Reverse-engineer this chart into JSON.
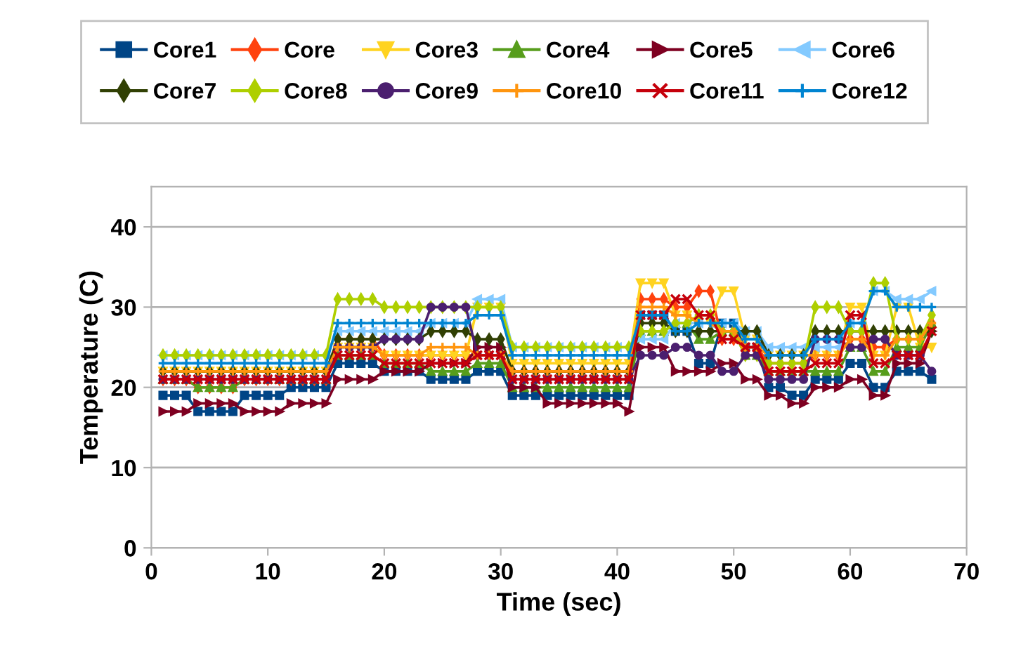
{
  "chart_data": {
    "type": "line",
    "xlabel": "Time (sec)",
    "ylabel": "Temperature (C)",
    "x": [
      1,
      2,
      3,
      4,
      5,
      6,
      7,
      8,
      9,
      10,
      11,
      12,
      13,
      14,
      15,
      16,
      17,
      18,
      19,
      20,
      21,
      22,
      23,
      24,
      25,
      26,
      27,
      28,
      29,
      30,
      31,
      32,
      33,
      34,
      35,
      36,
      37,
      38,
      39,
      40,
      41,
      42,
      43,
      44,
      45,
      46,
      47,
      48,
      49,
      50,
      51,
      52,
      53,
      54,
      55,
      56,
      57,
      58,
      59,
      60,
      61,
      62,
      63,
      64,
      65,
      66,
      67
    ],
    "xlim": [
      0,
      70
    ],
    "xticks": [
      0,
      10,
      20,
      30,
      40,
      50,
      60,
      70
    ],
    "ylim": [
      0,
      45
    ],
    "yticks": [
      0,
      10,
      20,
      30,
      40
    ],
    "grid": "y",
    "legend": "top",
    "line_style": "solid",
    "series": [
      {
        "name": "Core1",
        "color": "#004586",
        "marker": "square",
        "values": [
          19,
          19,
          19,
          17,
          17,
          17,
          17,
          19,
          19,
          19,
          19,
          20,
          20,
          20,
          20,
          23,
          23,
          23,
          23,
          22,
          22,
          22,
          22,
          21,
          21,
          21,
          21,
          22,
          22,
          22,
          19,
          19,
          19,
          19,
          19,
          19,
          19,
          19,
          19,
          19,
          19,
          29,
          29,
          29,
          27,
          27,
          23,
          23,
          28,
          28,
          25,
          25,
          20,
          20,
          19,
          19,
          21,
          21,
          21,
          23,
          23,
          20,
          20,
          22,
          22,
          22,
          21
        ]
      },
      {
        "name": "Core",
        "color": "#ff420e",
        "marker": "diamond",
        "values": [
          21,
          21,
          21,
          20,
          20,
          20,
          20,
          21,
          21,
          21,
          21,
          21,
          21,
          21,
          21,
          26,
          26,
          26,
          26,
          24,
          24,
          24,
          24,
          24,
          24,
          24,
          24,
          24,
          24,
          24,
          22,
          22,
          22,
          22,
          22,
          22,
          22,
          22,
          22,
          22,
          22,
          31,
          31,
          31,
          30,
          30,
          32,
          32,
          26,
          26,
          25,
          25,
          23,
          23,
          23,
          23,
          24,
          24,
          24,
          26,
          26,
          25,
          25,
          26,
          26,
          26,
          28
        ]
      },
      {
        "name": "Core3",
        "color": "#ffd320",
        "marker": "triangle-down",
        "values": [
          22,
          22,
          22,
          22,
          22,
          22,
          22,
          22,
          22,
          22,
          22,
          22,
          22,
          22,
          22,
          25,
          25,
          25,
          25,
          24,
          24,
          24,
          24,
          24,
          24,
          24,
          24,
          30,
          30,
          30,
          23,
          23,
          23,
          23,
          23,
          23,
          23,
          23,
          23,
          23,
          23,
          33,
          33,
          33,
          29,
          29,
          28,
          28,
          32,
          32,
          26,
          26,
          24,
          24,
          24,
          24,
          24,
          24,
          24,
          30,
          30,
          24,
          24,
          30,
          30,
          25,
          25
        ]
      },
      {
        "name": "Core4",
        "color": "#579d1c",
        "marker": "triangle",
        "values": [
          21,
          21,
          21,
          20,
          20,
          20,
          20,
          21,
          21,
          21,
          21,
          21,
          21,
          21,
          21,
          24,
          24,
          24,
          24,
          23,
          23,
          23,
          23,
          22,
          22,
          22,
          22,
          23,
          23,
          23,
          20,
          20,
          20,
          20,
          20,
          20,
          20,
          20,
          20,
          20,
          20,
          27,
          27,
          27,
          28,
          28,
          26,
          26,
          27,
          27,
          24,
          24,
          22,
          22,
          22,
          22,
          22,
          22,
          22,
          25,
          25,
          22,
          22,
          25,
          25,
          25,
          28
        ]
      },
      {
        "name": "Core5",
        "color": "#7e0021",
        "marker": "triangle-right",
        "values": [
          17,
          17,
          17,
          18,
          18,
          18,
          18,
          17,
          17,
          17,
          17,
          18,
          18,
          18,
          18,
          21,
          21,
          21,
          21,
          22,
          22,
          22,
          22,
          23,
          23,
          23,
          23,
          25,
          25,
          25,
          20,
          20,
          20,
          18,
          18,
          18,
          18,
          18,
          18,
          18,
          17,
          25,
          25,
          25,
          22,
          22,
          22,
          22,
          23,
          23,
          21,
          21,
          19,
          19,
          18,
          18,
          20,
          20,
          20,
          21,
          21,
          19,
          19,
          23,
          23,
          23,
          27
        ]
      },
      {
        "name": "Core6",
        "color": "#83caff",
        "marker": "triangle-left",
        "values": [
          24,
          24,
          24,
          24,
          24,
          24,
          24,
          24,
          24,
          24,
          24,
          24,
          24,
          24,
          24,
          27,
          27,
          27,
          27,
          27,
          27,
          27,
          27,
          28,
          28,
          28,
          28,
          31,
          31,
          31,
          25,
          25,
          25,
          25,
          25,
          25,
          25,
          25,
          25,
          25,
          25,
          26,
          26,
          26,
          28,
          28,
          28,
          28,
          28,
          28,
          27,
          27,
          25,
          25,
          25,
          25,
          25,
          25,
          25,
          28,
          28,
          32,
          32,
          31,
          31,
          31,
          32
        ]
      },
      {
        "name": "Core7",
        "color": "#314004",
        "marker": "diamond",
        "values": [
          22,
          22,
          22,
          22,
          22,
          22,
          22,
          22,
          22,
          22,
          22,
          22,
          22,
          22,
          22,
          26,
          26,
          26,
          26,
          26,
          26,
          26,
          26,
          27,
          27,
          27,
          27,
          26,
          26,
          26,
          22,
          22,
          22,
          22,
          22,
          22,
          22,
          22,
          22,
          22,
          22,
          28,
          28,
          28,
          27,
          27,
          27,
          27,
          27,
          27,
          27,
          27,
          24,
          24,
          24,
          24,
          27,
          27,
          27,
          27,
          27,
          27,
          27,
          27,
          27,
          27,
          27
        ]
      },
      {
        "name": "Core8",
        "color": "#aecf00",
        "marker": "diamond",
        "values": [
          24,
          24,
          24,
          24,
          24,
          24,
          24,
          24,
          24,
          24,
          24,
          24,
          24,
          24,
          24,
          31,
          31,
          31,
          31,
          30,
          30,
          30,
          30,
          30,
          30,
          30,
          30,
          30,
          30,
          30,
          25,
          25,
          25,
          25,
          25,
          25,
          25,
          25,
          25,
          25,
          25,
          27,
          27,
          27,
          28,
          28,
          29,
          29,
          27,
          27,
          24,
          24,
          23,
          23,
          23,
          23,
          30,
          30,
          30,
          27,
          27,
          33,
          33,
          26,
          26,
          26,
          29
        ]
      },
      {
        "name": "Core9",
        "color": "#4b1f6f",
        "marker": "circle",
        "values": [
          21,
          21,
          21,
          21,
          21,
          21,
          21,
          21,
          21,
          21,
          21,
          21,
          21,
          21,
          21,
          25,
          25,
          25,
          25,
          26,
          26,
          26,
          26,
          30,
          30,
          30,
          30,
          24,
          24,
          24,
          21,
          21,
          21,
          21,
          21,
          21,
          21,
          21,
          21,
          21,
          21,
          24,
          24,
          24,
          25,
          25,
          24,
          24,
          22,
          22,
          24,
          24,
          21,
          21,
          21,
          21,
          26,
          26,
          26,
          25,
          25,
          26,
          26,
          24,
          24,
          24,
          22
        ]
      },
      {
        "name": "Core10",
        "color": "#ff950e",
        "marker": "plus",
        "values": [
          22,
          22,
          22,
          22,
          22,
          22,
          22,
          22,
          22,
          22,
          22,
          22,
          22,
          22,
          22,
          25,
          25,
          25,
          25,
          24,
          24,
          24,
          24,
          25,
          25,
          25,
          25,
          24,
          24,
          24,
          22,
          22,
          22,
          22,
          22,
          22,
          22,
          22,
          22,
          22,
          22,
          30,
          30,
          30,
          29,
          29,
          28,
          28,
          27,
          27,
          25,
          25,
          24,
          24,
          24,
          24,
          24,
          24,
          24,
          26,
          26,
          24,
          24,
          26,
          26,
          26,
          28
        ]
      },
      {
        "name": "Core11",
        "color": "#c5000b",
        "marker": "cross",
        "values": [
          21,
          21,
          21,
          21,
          21,
          21,
          21,
          21,
          21,
          21,
          21,
          21,
          21,
          21,
          21,
          24,
          24,
          24,
          24,
          23,
          23,
          23,
          23,
          23,
          23,
          23,
          23,
          24,
          24,
          24,
          21,
          21,
          21,
          21,
          21,
          21,
          21,
          21,
          21,
          21,
          21,
          29,
          29,
          29,
          31,
          31,
          29,
          29,
          26,
          26,
          25,
          25,
          22,
          22,
          22,
          22,
          23,
          23,
          23,
          29,
          29,
          23,
          23,
          24,
          24,
          24,
          27
        ]
      },
      {
        "name": "Core12",
        "color": "#0084d1",
        "marker": "plus",
        "values": [
          23,
          23,
          23,
          23,
          23,
          23,
          23,
          23,
          23,
          23,
          23,
          23,
          23,
          23,
          23,
          28,
          28,
          28,
          28,
          28,
          28,
          28,
          28,
          28,
          28,
          28,
          28,
          29,
          29,
          29,
          24,
          24,
          24,
          24,
          24,
          24,
          24,
          24,
          24,
          24,
          24,
          29,
          29,
          29,
          27,
          27,
          28,
          28,
          28,
          28,
          26,
          26,
          24,
          24,
          24,
          24,
          26,
          26,
          26,
          28,
          28,
          32,
          32,
          30,
          30,
          30,
          30
        ]
      }
    ]
  }
}
